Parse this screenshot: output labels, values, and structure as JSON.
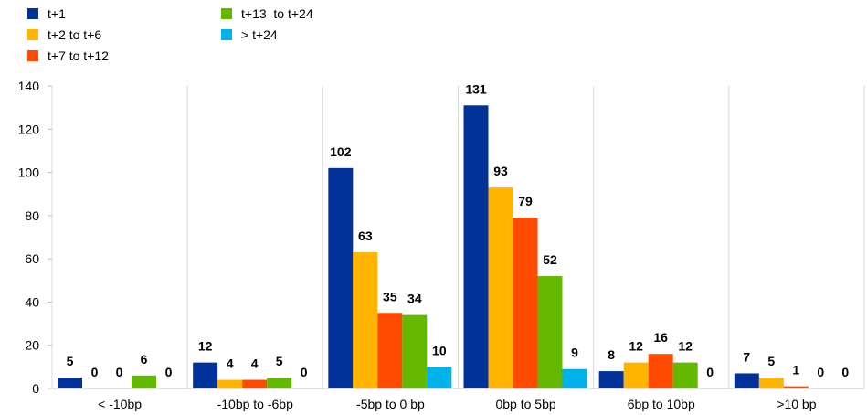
{
  "chart_data": {
    "type": "bar",
    "title": "",
    "xlabel": "",
    "ylabel": "",
    "ylim": [
      0,
      140
    ],
    "yticks": [
      0,
      20,
      40,
      60,
      80,
      100,
      120,
      140
    ],
    "grid": "vertical separators between categories",
    "legend_position": "top-left",
    "categories": [
      "< -10bp",
      "-10bp to -6bp",
      "-5bp to 0 bp",
      "0bp to 5bp",
      "6bp to 10bp",
      ">10 bp"
    ],
    "series": [
      {
        "name": "t+1",
        "color": "#003299",
        "values": [
          5,
          12,
          102,
          131,
          8,
          7
        ]
      },
      {
        "name": "t+2 to t+6",
        "color": "#FFB400",
        "values": [
          0,
          4,
          63,
          93,
          12,
          5
        ]
      },
      {
        "name": "t+7 to t+12",
        "color": "#FF4B00",
        "values": [
          0,
          4,
          35,
          79,
          16,
          1
        ]
      },
      {
        "name": "t+13  to t+24",
        "color": "#65B800",
        "values": [
          6,
          5,
          34,
          52,
          12,
          0
        ]
      },
      {
        "name": "> t+24",
        "color": "#00B1EA",
        "values": [
          0,
          0,
          10,
          9,
          0,
          0
        ]
      }
    ]
  }
}
